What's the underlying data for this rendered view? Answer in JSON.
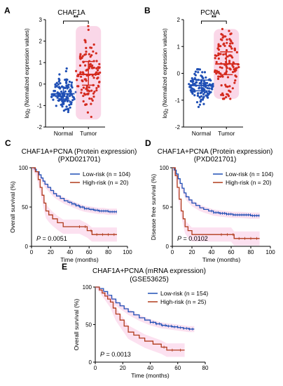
{
  "figure": {
    "panels": [
      {
        "letter": "A",
        "title": "CHAF1A"
      },
      {
        "letter": "B",
        "title": "PCNA"
      },
      {
        "letter": "C",
        "title": "CHAF1A+PCNA (Protein expression)",
        "subtitle": "(PXD021701)"
      },
      {
        "letter": "D",
        "title": "CHAF1A+PCNA (Protein expression)",
        "subtitle": "(PXD021701)"
      },
      {
        "letter": "E",
        "title": "CHAF1A+PCNA (mRNA expression)",
        "subtitle": "(GSE53625)"
      }
    ]
  },
  "colors": {
    "normal": "#1f4fb5",
    "tumor": "#d42a1e",
    "tumor_band": "#f6b6d6",
    "low_risk": "#1f4fb5",
    "high_risk": "#b03a1a",
    "ci_band": "#f9c9e4"
  },
  "chart_data": [
    {
      "type": "scatter",
      "panel": "A",
      "title": "CHAF1A",
      "ylabel": "log2 (Normalized expression values)",
      "ylim": [
        -2,
        3
      ],
      "yticks": [
        "-2",
        "-1",
        "0",
        "1",
        "2",
        "3"
      ],
      "categories": [
        "Normal",
        "Tumor"
      ],
      "significance": "**",
      "series": [
        {
          "name": "Normal",
          "n": 120,
          "mean": -0.45,
          "sd_bar": [
            -0.75,
            -0.15
          ],
          "range": [
            -1.3,
            1.05
          ]
        },
        {
          "name": "Tumor",
          "n": 120,
          "mean": 0.45,
          "sd_bar": [
            -0.05,
            1.05
          ],
          "range": [
            -1.65,
            2.7
          ]
        }
      ]
    },
    {
      "type": "scatter",
      "panel": "B",
      "title": "PCNA",
      "ylabel": "log2 (Normalized expression values)",
      "ylim": [
        -2,
        2
      ],
      "yticks": [
        "-2",
        "-1",
        "0",
        "1",
        "2"
      ],
      "categories": [
        "Normal",
        "Tumor"
      ],
      "significance": "**",
      "series": [
        {
          "name": "Normal",
          "n": 120,
          "mean": -0.45,
          "sd_bar": [
            -0.65,
            -0.25
          ],
          "range": [
            -1.25,
            0.15
          ]
        },
        {
          "name": "Tumor",
          "n": 120,
          "mean": 0.35,
          "sd_bar": [
            -0.05,
            0.8
          ],
          "range": [
            -0.95,
            1.65
          ]
        }
      ]
    },
    {
      "type": "line",
      "panel": "C",
      "title": "CHAF1A+PCNA (Protein expression)",
      "subtitle": "(PXD021701)",
      "xlabel": "Time (months)",
      "ylabel": "Overall survival (%)",
      "xlim": [
        0,
        100
      ],
      "ylim": [
        0,
        100
      ],
      "xticks": [
        "0",
        "20",
        "40",
        "60",
        "80",
        "100"
      ],
      "yticks": [
        "0",
        "50",
        "100"
      ],
      "pvalue_label": "P",
      "pvalue": "= 0.0051",
      "series": [
        {
          "name": "Low-risk (n = 104)",
          "x": [
            0,
            3,
            5,
            8,
            10,
            12,
            14,
            17,
            20,
            23,
            26,
            30,
            34,
            38,
            42,
            46,
            50,
            55,
            60,
            65,
            70,
            75,
            80,
            89
          ],
          "y": [
            100,
            98,
            95,
            91,
            87,
            83,
            79,
            75,
            71,
            67,
            64,
            61,
            58,
            56,
            54,
            52,
            50,
            48,
            47,
            46,
            45,
            45,
            44,
            44
          ]
        },
        {
          "name": "High-risk (n = 20)",
          "x": [
            0,
            4,
            7,
            9,
            11,
            13,
            15,
            18,
            22,
            27,
            33,
            40,
            50,
            58,
            63,
            70,
            89
          ],
          "y": [
            100,
            95,
            85,
            75,
            65,
            55,
            45,
            40,
            35,
            30,
            25,
            25,
            25,
            20,
            15,
            15,
            15
          ]
        }
      ]
    },
    {
      "type": "line",
      "panel": "D",
      "title": "CHAF1A+PCNA (Protein expression)",
      "subtitle": "(PXD021701)",
      "xlabel": "Time (months)",
      "ylabel": "Disease free survival (%)",
      "xlim": [
        0,
        100
      ],
      "ylim": [
        0,
        100
      ],
      "xticks": [
        "0",
        "20",
        "40",
        "60",
        "80",
        "100"
      ],
      "yticks": [
        "0",
        "50",
        "100"
      ],
      "pvalue_label": "P",
      "pvalue": "= 0.0102",
      "series": [
        {
          "name": "Low-risk (n = 104)",
          "x": [
            0,
            2,
            4,
            6,
            8,
            10,
            12,
            14,
            17,
            20,
            24,
            28,
            32,
            37,
            42,
            48,
            55,
            62,
            70,
            80,
            89
          ],
          "y": [
            100,
            97,
            92,
            86,
            80,
            74,
            68,
            63,
            59,
            55,
            52,
            49,
            47,
            45,
            43,
            42,
            41,
            40,
            40,
            39,
            39
          ]
        },
        {
          "name": "High-risk (n = 20)",
          "x": [
            0,
            3,
            5,
            7,
            9,
            11,
            13,
            16,
            20,
            30,
            40,
            50,
            60,
            63,
            70,
            89
          ],
          "y": [
            100,
            90,
            75,
            60,
            45,
            35,
            25,
            20,
            15,
            15,
            15,
            15,
            15,
            10,
            10,
            10
          ]
        }
      ]
    },
    {
      "type": "line",
      "panel": "E",
      "title": "CHAF1A+PCNA (mRNA expression)",
      "subtitle": "(GSE53625)",
      "xlabel": "Time (months)",
      "ylabel": "Overall survival (%)",
      "xlim": [
        0,
        80
      ],
      "ylim": [
        0,
        100
      ],
      "xticks": [
        "0",
        "20",
        "40",
        "60",
        "80"
      ],
      "yticks": [
        "0",
        "50",
        "100"
      ],
      "pvalue_label": "P",
      "pvalue": "= 0.0013",
      "series": [
        {
          "name": "Low-risk (n = 154)",
          "x": [
            0,
            3,
            6,
            9,
            12,
            15,
            18,
            21,
            24,
            28,
            32,
            36,
            40,
            44,
            48,
            52,
            56,
            60,
            64,
            68,
            72
          ],
          "y": [
            100,
            98,
            94,
            89,
            84,
            79,
            75,
            71,
            67,
            63,
            59,
            56,
            53,
            51,
            49,
            48,
            47,
            46,
            45,
            44,
            44
          ]
        },
        {
          "name": "High-risk (n = 25)",
          "x": [
            0,
            3,
            5,
            7,
            9,
            11,
            13,
            15,
            18,
            21,
            24,
            28,
            32,
            36,
            42,
            48,
            52,
            56,
            60,
            65
          ],
          "y": [
            100,
            96,
            92,
            88,
            84,
            80,
            72,
            64,
            56,
            48,
            40,
            36,
            32,
            28,
            24,
            20,
            16,
            16,
            16,
            16
          ]
        }
      ]
    }
  ]
}
